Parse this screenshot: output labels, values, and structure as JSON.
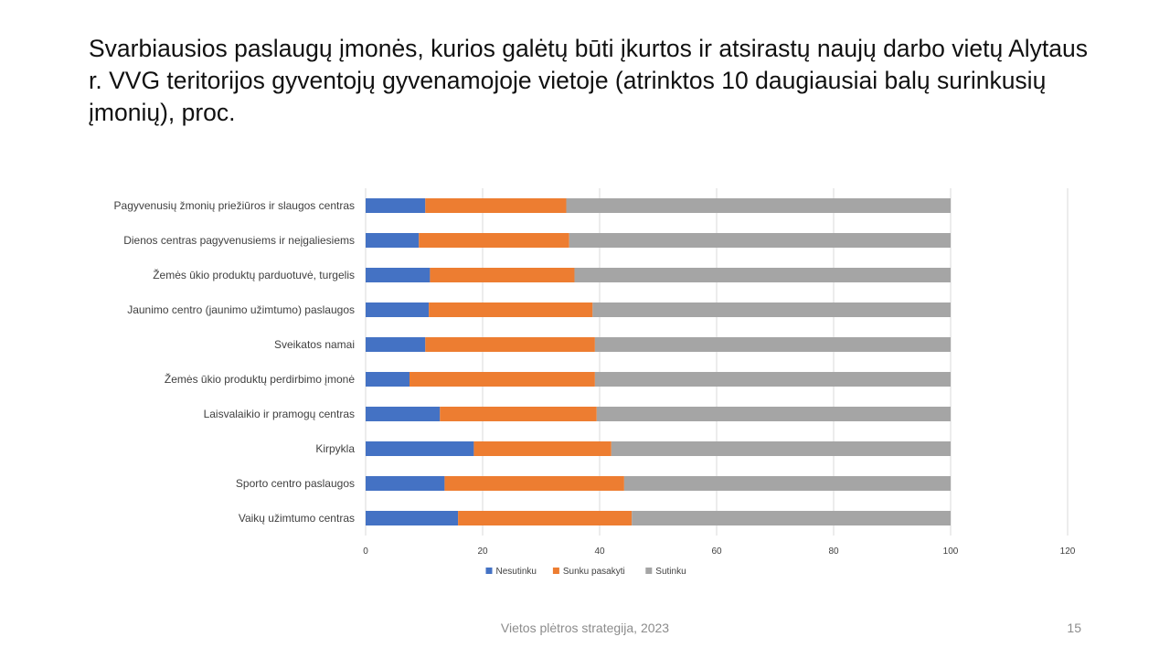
{
  "slide": {
    "title": "Svarbiausios paslaugų įmonės, kurios galėtų būti įkurtos ir atsirastų naujų darbo vietų Alytaus r. VVG teritorijos gyventojų gyvenamojoje vietoje (atrinktos 10 daugiausiai balų surinkusių įmonių), proc.",
    "footer": "Vietos plėtros strategija, 2023",
    "page_number": "15"
  },
  "chart_data": {
    "type": "bar",
    "orientation": "horizontal",
    "stacked": true,
    "categories": [
      "Pagyvenusių žmonių priežiūros ir slaugos centras",
      "Dienos centras pagyvenusiems ir neįgaliesiems",
      "Žemės ūkio produktų parduotuvė, turgelis",
      "Jaunimo centro (jaunimo užimtumo) paslaugos",
      "Sveikatos namai",
      "Žemės ūkio produktų perdirbimo įmonė",
      "Laisvalaikio ir pramogų centras",
      "Kirpykla",
      "Sporto centro paslaugos",
      "Vaikų užimtumo centras"
    ],
    "series": [
      {
        "name": "Nesutinku",
        "color": "#4472c4",
        "values": [
          10.2,
          9.1,
          11.0,
          10.8,
          10.2,
          7.5,
          12.7,
          18.5,
          13.5,
          15.8
        ]
      },
      {
        "name": "Sunku pasakyti",
        "color": "#ed7d31",
        "values": [
          24.1,
          25.7,
          24.7,
          28.0,
          29.0,
          31.7,
          26.8,
          23.5,
          30.7,
          29.7
        ]
      },
      {
        "name": "Sutinku",
        "color": "#a5a5a5",
        "values": [
          65.7,
          65.2,
          64.3,
          61.2,
          60.8,
          60.8,
          60.5,
          58.0,
          55.8,
          54.5
        ]
      }
    ],
    "xlim": [
      0,
      120
    ],
    "xticks": [
      "0",
      "20",
      "40",
      "60",
      "80",
      "100",
      "120"
    ],
    "grid": "vertical",
    "legend": "bottom"
  }
}
